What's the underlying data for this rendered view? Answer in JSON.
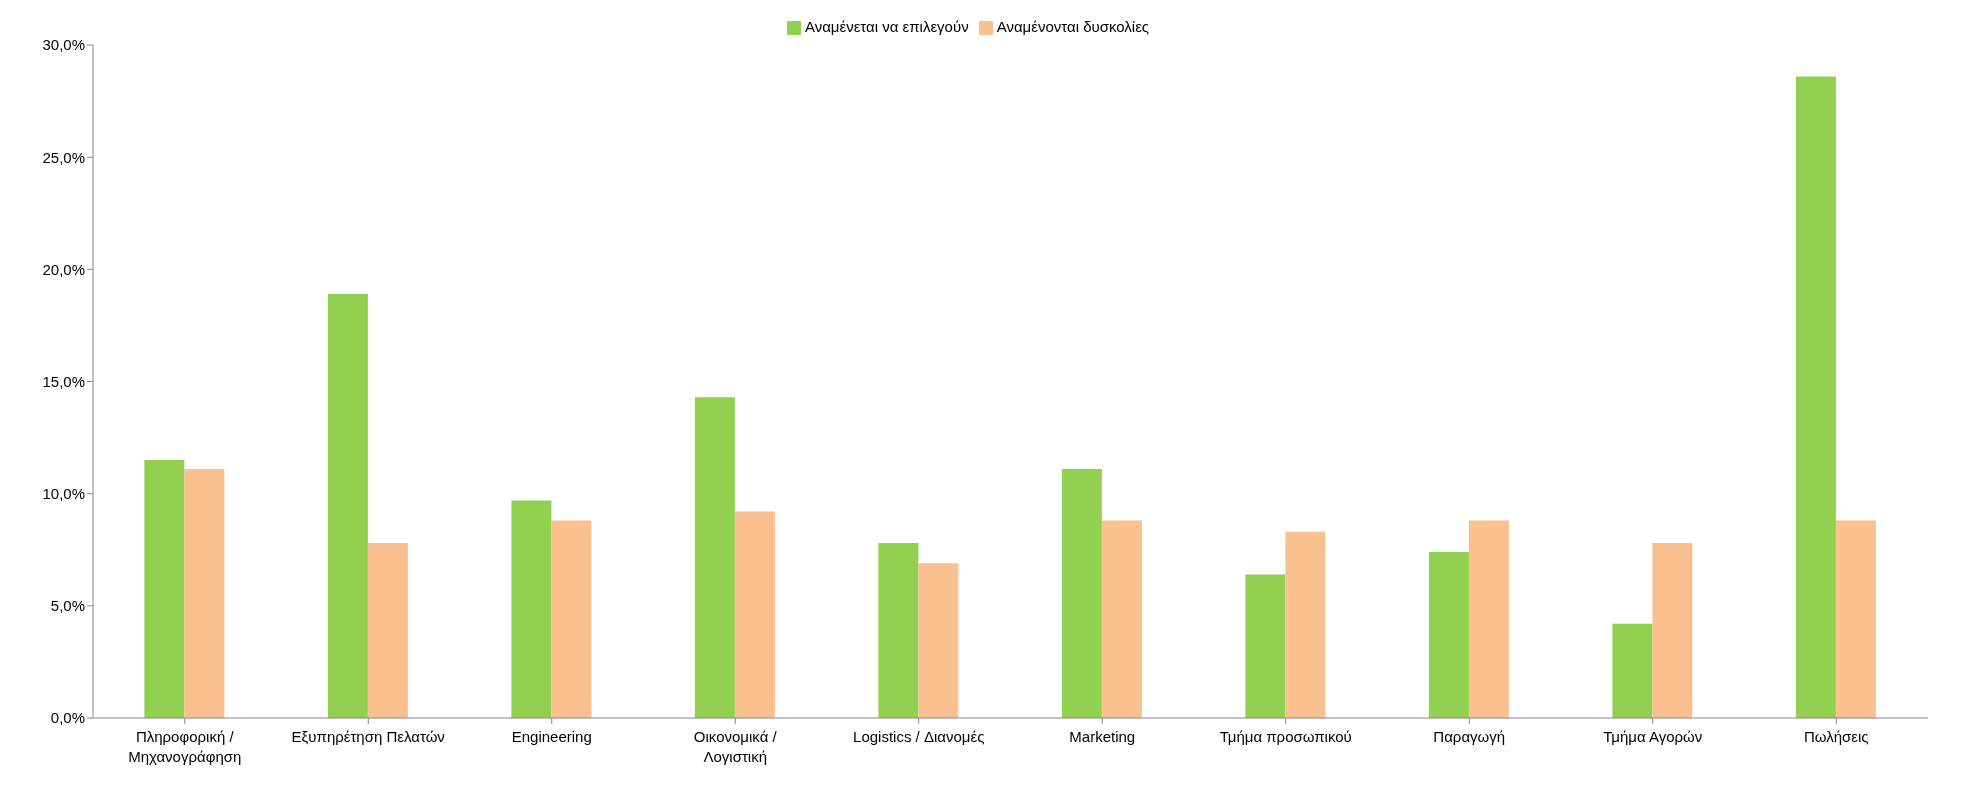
{
  "chart_data": {
    "type": "bar",
    "categories": [
      "Πληροφορική / Μηχανογράφηση",
      "Εξυπηρέτηση Πελατών",
      "Engineering",
      "Οικονομικά / Λογιστική",
      "Logistics / Διανομές",
      "Marketing",
      "Τμήμα προσωπικού",
      "Παραγωγή",
      "Τμήμα Αγορών",
      "Πωλήσεις"
    ],
    "series": [
      {
        "name": "Αναμένεται να επιλεγούν",
        "color": "#92d050",
        "values": [
          11.5,
          18.9,
          9.7,
          14.3,
          7.8,
          11.1,
          6.4,
          7.4,
          4.2,
          28.6
        ]
      },
      {
        "name": "Αναμένονται δυσκολίες",
        "color": "#fac090",
        "values": [
          11.1,
          7.8,
          8.8,
          9.2,
          6.9,
          8.8,
          8.3,
          8.8,
          7.8,
          8.8
        ]
      }
    ],
    "ylim": [
      0,
      30
    ],
    "yticks": [
      {
        "value": 0,
        "label": "0,0%"
      },
      {
        "value": 5,
        "label": "5,0%"
      },
      {
        "value": 10,
        "label": "10,0%"
      },
      {
        "value": 15,
        "label": "15,0%"
      },
      {
        "value": 20,
        "label": "20,0%"
      },
      {
        "value": 25,
        "label": "25,0%"
      },
      {
        "value": 30,
        "label": "30,0%"
      }
    ],
    "grid": false,
    "legend": "top"
  }
}
